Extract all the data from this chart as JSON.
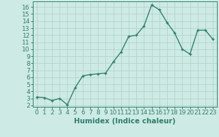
{
  "xlabel": "Humidex (Indice chaleur)",
  "ylabel": "",
  "x": [
    0,
    1,
    2,
    3,
    4,
    5,
    6,
    7,
    8,
    9,
    10,
    11,
    12,
    13,
    14,
    15,
    16,
    17,
    18,
    19,
    20,
    21,
    22,
    23
  ],
  "y": [
    3.2,
    3.1,
    2.7,
    3.0,
    2.1,
    4.5,
    6.2,
    6.4,
    6.5,
    6.6,
    8.2,
    9.6,
    11.8,
    12.0,
    13.3,
    16.3,
    15.6,
    13.8,
    12.3,
    10.0,
    9.3,
    12.7,
    12.7,
    11.4
  ],
  "line_color": "#2e7d6e",
  "marker": "+",
  "marker_size": 3.5,
  "line_width": 1.0,
  "bg_color": "#ceeae4",
  "grid_color": "#b0d4cc",
  "tick_color": "#2e7d6e",
  "label_color": "#2e7d6e",
  "xlim": [
    -0.5,
    23.5
  ],
  "ylim": [
    1.8,
    16.8
  ],
  "yticks": [
    2,
    3,
    4,
    5,
    6,
    7,
    8,
    9,
    10,
    11,
    12,
    13,
    14,
    15,
    16
  ],
  "xticks": [
    0,
    1,
    2,
    3,
    4,
    5,
    6,
    7,
    8,
    9,
    10,
    11,
    12,
    13,
    14,
    15,
    16,
    17,
    18,
    19,
    20,
    21,
    22,
    23
  ],
  "font_size": 6.5,
  "xlabel_font_size": 7.5
}
